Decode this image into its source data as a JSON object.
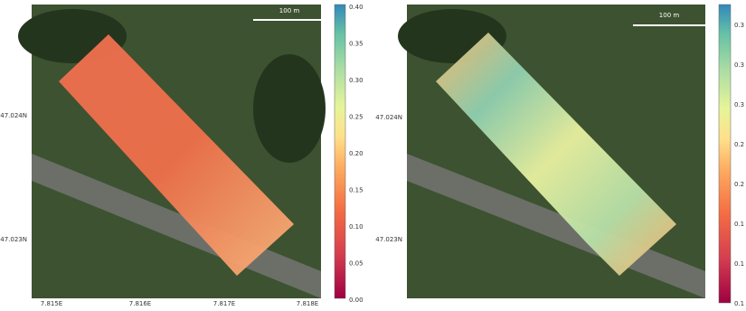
{
  "panels": [
    {
      "lat_labels": [
        "47.024N",
        "47.023N"
      ],
      "lon_labels": [
        "7.815E",
        "7.816E",
        "7.817E",
        "7.818E"
      ],
      "scale_bar": "100 m",
      "colorbar_ticks": [
        "0.40",
        "0.35",
        "0.30",
        "0.25",
        "0.20",
        "0.15",
        "0.10",
        "0.05",
        "0.00"
      ]
    },
    {
      "lat_labels": [
        "47.024N",
        "47.023N"
      ],
      "lon_labels": [],
      "scale_bar": "100 m",
      "colorbar_ticks": [
        "0.3",
        "0.3",
        "0.3",
        "0.2",
        "0.2",
        "0.1",
        "0.1",
        "0.1"
      ]
    }
  ]
}
